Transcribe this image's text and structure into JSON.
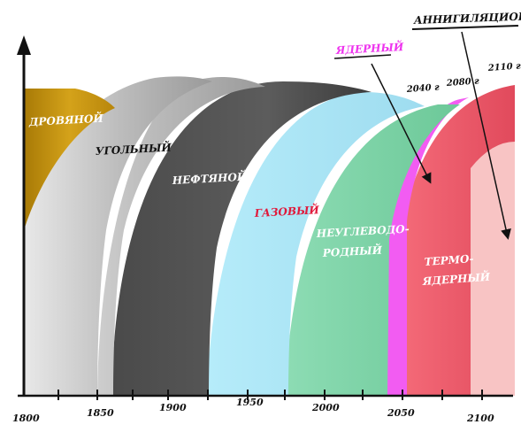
{
  "x_axis": {
    "ticks": [
      "1800",
      "1850",
      "1900",
      "1950",
      "2000",
      "2050",
      "2100"
    ]
  },
  "eras": [
    {
      "id": "wood",
      "label": "ДРОВЯНОЙ",
      "color": "#c5940f",
      "label_color": "#ffffff"
    },
    {
      "id": "coal",
      "label": "УГОЛЬНЫЙ",
      "color": "#b8b8b8",
      "label_color": "#111111"
    },
    {
      "id": "oil",
      "label": "НЕФТЯНОЙ",
      "color": "#555555",
      "label_color": "#ffffff"
    },
    {
      "id": "gas",
      "label": "ГАЗОВЫЙ",
      "color": "#a6e3f3",
      "label_color": "#e0193b"
    },
    {
      "id": "nonhc",
      "label_line1": "НЕУГЛЕВОДО-",
      "label_line2": "РОДНЫЙ",
      "color": "#7fd3a8",
      "label_color": "#ffffff"
    },
    {
      "id": "nuclear",
      "label": "ЯДЕРНЫЙ",
      "color": "#ee55ee",
      "label_color": "#ee33ee"
    },
    {
      "id": "fusion",
      "label_line1": "ТЕРМО-",
      "label_line2": "ЯДЕРНЫЙ",
      "color": "#ef5a6a",
      "label_color": "#ffffff"
    },
    {
      "id": "annih",
      "label": "АННИГИЛЯЦИОННЫЙ",
      "color": "#f8c3c3",
      "label_color": "#111111"
    }
  ],
  "year_marks": [
    "2040 г",
    "2080 г",
    "2110 г"
  ]
}
